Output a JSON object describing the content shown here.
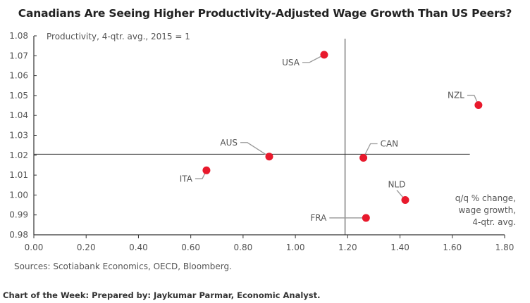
{
  "chart_data": {
    "type": "scatter",
    "title": "Canadians Are Seeing Higher Productivity-Adjusted Wage Growth Than US Peers?",
    "ylabel": "Productivity, 4-qtr. avg., 2015 = 1",
    "xlabel": [
      "q/q % change,",
      "wage growth,",
      "4-qtr. avg."
    ],
    "xlim": [
      0,
      1.8
    ],
    "ylim": [
      0.98,
      1.08
    ],
    "xticks": [
      "0.00",
      "0.20",
      "0.40",
      "0.60",
      "0.80",
      "1.00",
      "1.20",
      "1.40",
      "1.60",
      "1.80"
    ],
    "yticks": [
      "0.98",
      "0.99",
      "1.00",
      "1.01",
      "1.02",
      "1.03",
      "1.04",
      "1.05",
      "1.06",
      "1.07",
      "1.08"
    ],
    "grid": false,
    "reference_lines": {
      "vertical_x": 1.19,
      "horizontal_y": 1.0205
    },
    "marker_color": "#e8192c",
    "points": [
      {
        "label": "USA",
        "x": 1.11,
        "y": 1.0705
      },
      {
        "label": "NZL",
        "x": 1.7,
        "y": 1.0452
      },
      {
        "label": "AUS",
        "x": 0.9,
        "y": 1.0193
      },
      {
        "label": "CAN",
        "x": 1.26,
        "y": 1.0187
      },
      {
        "label": "ITA",
        "x": 0.66,
        "y": 1.0124
      },
      {
        "label": "NLD",
        "x": 1.42,
        "y": 0.9975
      },
      {
        "label": "FRA",
        "x": 1.27,
        "y": 0.9885
      }
    ]
  },
  "sources": "Sources: Scotiabank Economics, OECD, Bloomberg.",
  "footer": "Chart of the Week: Prepared by: Jaykumar Parmar, Economic Analyst."
}
